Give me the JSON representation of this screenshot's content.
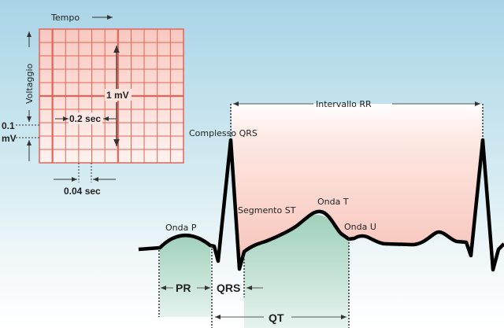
{
  "colors": {
    "trace": "#000000",
    "grid_fill": "#fbd9d3",
    "grid_line": "#e2645a",
    "background_top": "#a9d4e6",
    "rr_fill": "#f7c9c0",
    "wave_fill": "#a9d6c2"
  },
  "grid": {
    "time_label": "Tempo",
    "voltage_label": "Voltaggio",
    "one_mv": "1 mV",
    "point_two_sec": "0.2 sec",
    "point_one_mv_line1": "0.1",
    "point_one_mv_line2": "mV",
    "point_zero_four_sec": "0.04 sec"
  },
  "waves": {
    "rr_interval": "Intervallo RR",
    "qrs_complex": "Complesso QRS",
    "st_segment": "Segmento ST",
    "t_wave": "Onda T",
    "p_wave": "Onda P",
    "u_wave": "Onda U"
  },
  "intervals": {
    "pr": "PR",
    "qrs": "QRS",
    "qt": "QT"
  }
}
